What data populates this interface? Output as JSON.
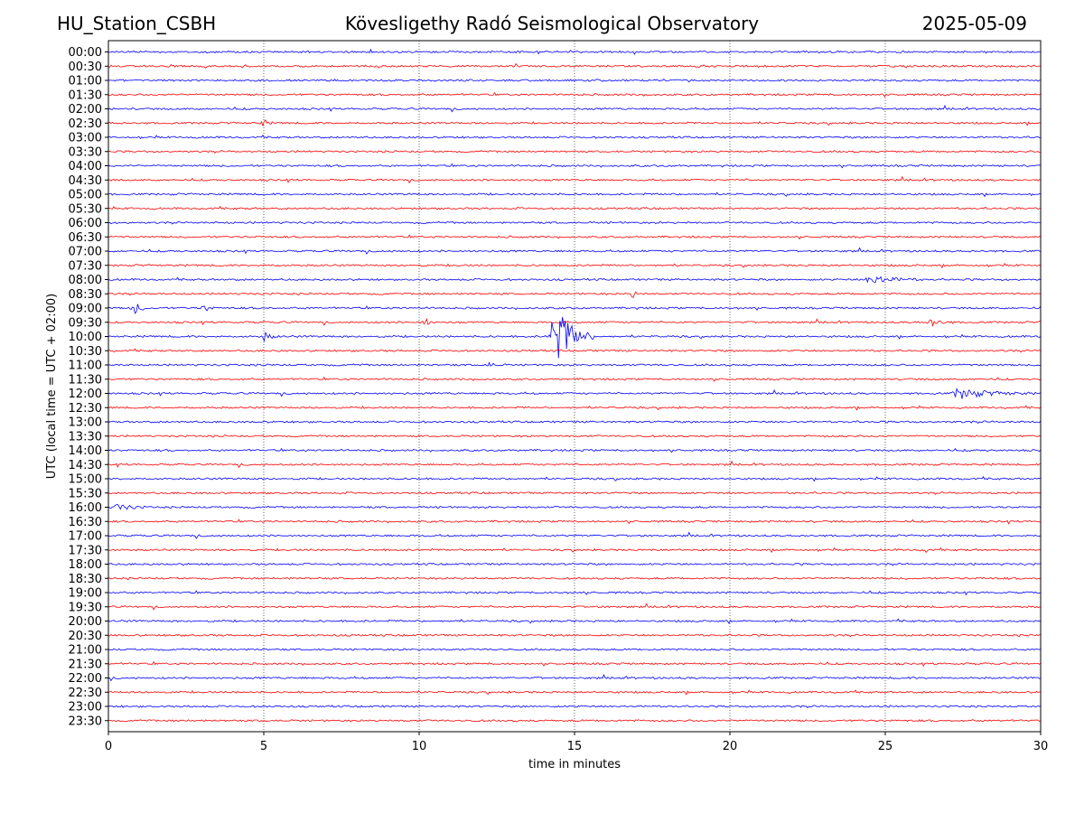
{
  "header": {
    "station": "HU_Station_CSBH",
    "observatory": "Kövesligethy Radó Seismological Observatory",
    "date": "2025-05-09"
  },
  "chart_data": {
    "type": "line",
    "xlabel": "time in minutes",
    "ylabel": "UTC (local time = UTC + 02:00)",
    "xlim": [
      0,
      30
    ],
    "xticks": [
      "0",
      "5",
      "10",
      "15",
      "20",
      "25",
      "30"
    ],
    "vertical_gridlines_at": [
      5,
      10,
      15,
      20,
      25
    ],
    "grid": "dotted vertical",
    "colors": {
      "even_rows": "#0000ff",
      "odd_rows": "#ff0000"
    },
    "rows": [
      "00:00",
      "00:30",
      "01:00",
      "01:30",
      "02:00",
      "02:30",
      "03:00",
      "03:30",
      "04:00",
      "04:30",
      "05:00",
      "05:30",
      "06:00",
      "06:30",
      "07:00",
      "07:30",
      "08:00",
      "08:30",
      "09:00",
      "09:30",
      "10:00",
      "10:30",
      "11:00",
      "11:30",
      "12:00",
      "12:30",
      "13:00",
      "13:30",
      "14:00",
      "14:30",
      "15:00",
      "15:30",
      "16:00",
      "16:30",
      "17:00",
      "17:30",
      "18:00",
      "18:30",
      "19:00",
      "19:30",
      "20:00",
      "20:30",
      "21:00",
      "21:30",
      "22:00",
      "22:30",
      "23:00",
      "23:30"
    ],
    "events": [
      {
        "row": "09:00",
        "minute": 0.8,
        "amplitude": 0.55,
        "duration": 0.5
      },
      {
        "row": "09:00",
        "minute": 3.1,
        "amplitude": 0.25,
        "duration": 0.4
      },
      {
        "row": "09:30",
        "minute": 10.2,
        "amplitude": 0.3,
        "duration": 0.3
      },
      {
        "row": "09:30",
        "minute": 26.5,
        "amplitude": 0.3,
        "duration": 0.8
      },
      {
        "row": "10:00",
        "minute": 14.3,
        "amplitude": 3.1,
        "duration": 1.3
      },
      {
        "row": "10:00",
        "minute": 5.0,
        "amplitude": 0.3,
        "duration": 0.6
      },
      {
        "row": "08:00",
        "minute": 24.5,
        "amplitude": 0.35,
        "duration": 1.8
      },
      {
        "row": "08:30",
        "minute": 16.9,
        "amplitude": 0.3,
        "duration": 0.3
      },
      {
        "row": "12:00",
        "minute": 27.3,
        "amplitude": 0.4,
        "duration": 2.5
      },
      {
        "row": "16:00",
        "minute": 0.3,
        "amplitude": 0.25,
        "duration": 1.0
      },
      {
        "row": "11:00",
        "minute": 12.2,
        "amplitude": 0.2,
        "duration": 0.6
      },
      {
        "row": "02:30",
        "minute": 5.0,
        "amplitude": 0.25,
        "duration": 0.3
      },
      {
        "row": "17:30",
        "minute": 26.3,
        "amplitude": 0.2,
        "duration": 0.2
      }
    ]
  }
}
